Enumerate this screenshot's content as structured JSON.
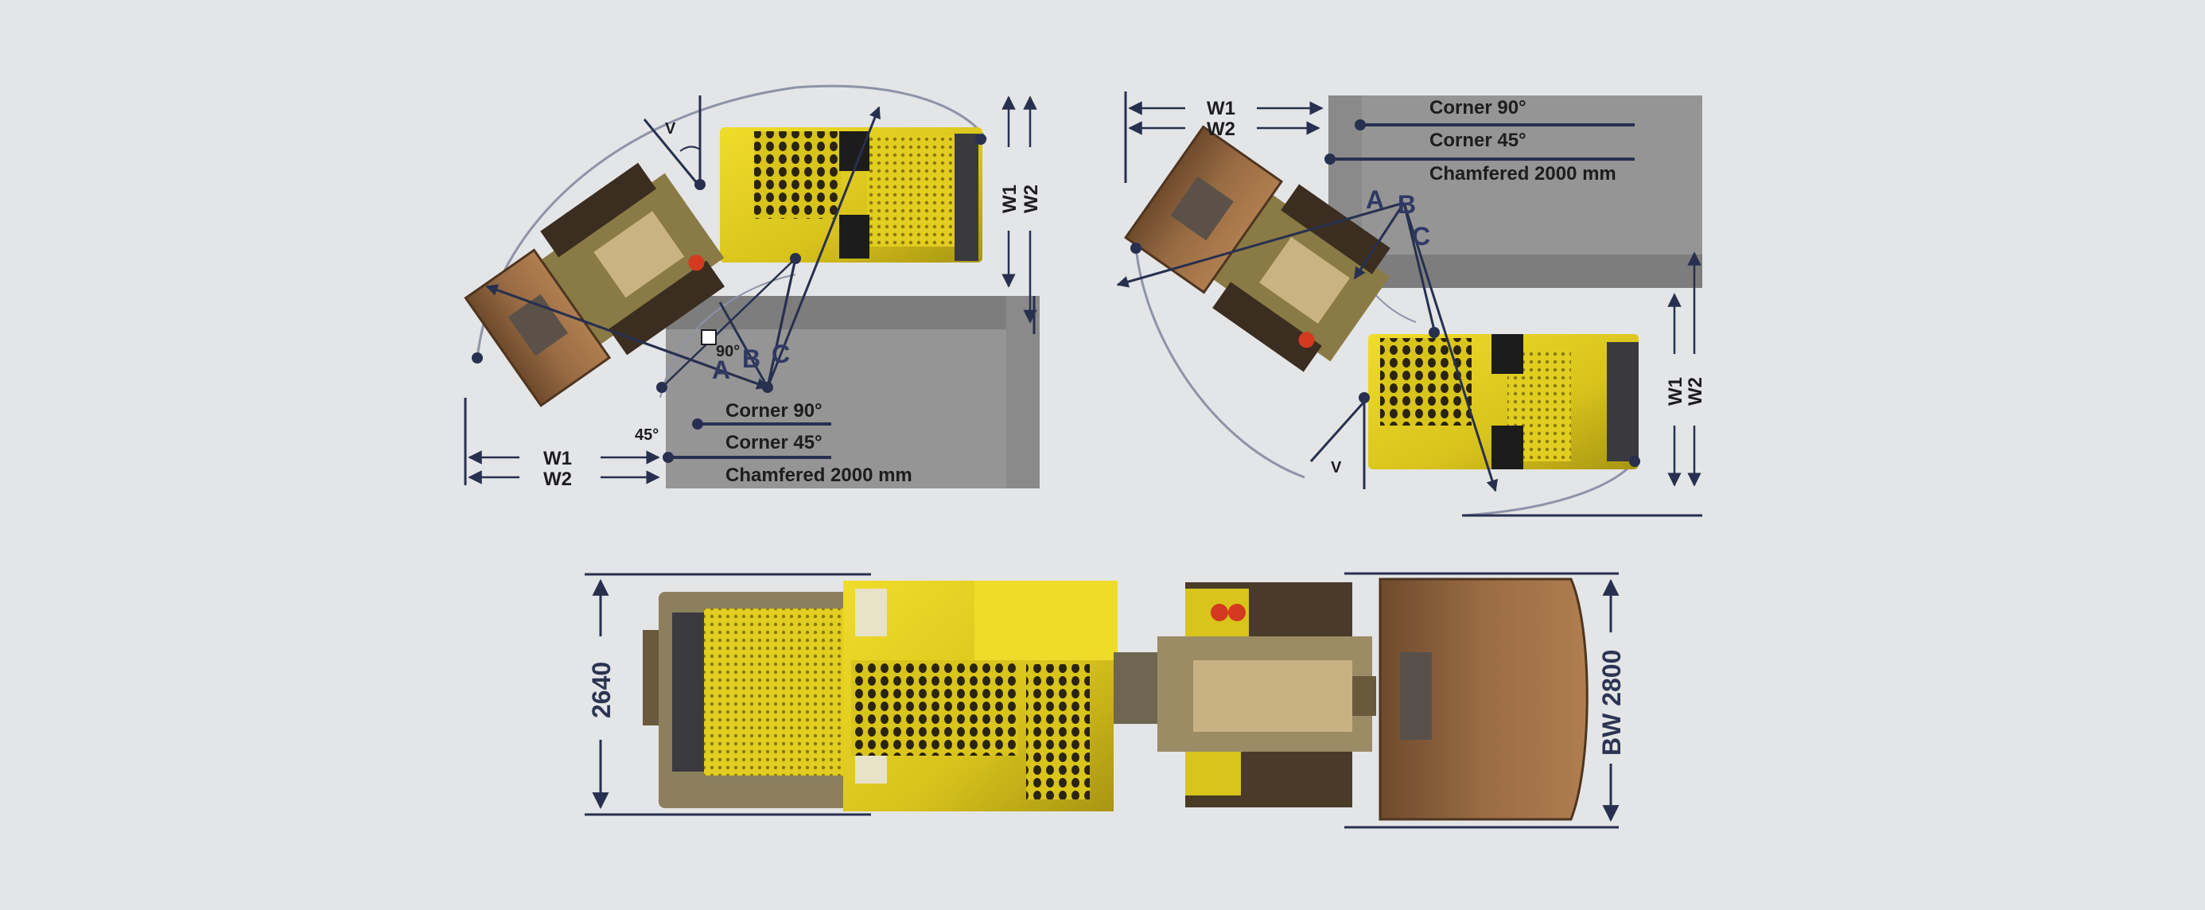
{
  "colors": {
    "background": "#e4e5e7",
    "wall": "#939393",
    "wall_dark": "#7b7b7b",
    "navy": "#27304f",
    "machine_yellow": "#e3cf1f",
    "bucket_brown": "#8a5f37"
  },
  "top_left": {
    "corner_90": "Corner 90°",
    "corner_45": "Corner 45°",
    "chamfered": "Chamfered 2000 mm",
    "w1": "W1",
    "w2": "W2",
    "w1_vertical": "W1",
    "w2_vertical": "W2",
    "v": "V",
    "a": "A",
    "b": "B",
    "c": "C",
    "angle_90": "90°",
    "angle_45": "45°"
  },
  "top_right": {
    "corner_90": "Corner 90°",
    "corner_45": "Corner 45°",
    "chamfered": "Chamfered 2000 mm",
    "w1": "W1",
    "w2": "W2",
    "w1_vertical": "W1",
    "w2_vertical": "W2",
    "v": "V",
    "a": "A",
    "b": "B",
    "c": "C"
  },
  "bottom": {
    "width_2640": "2640",
    "bucket_width": "BW 2800"
  }
}
